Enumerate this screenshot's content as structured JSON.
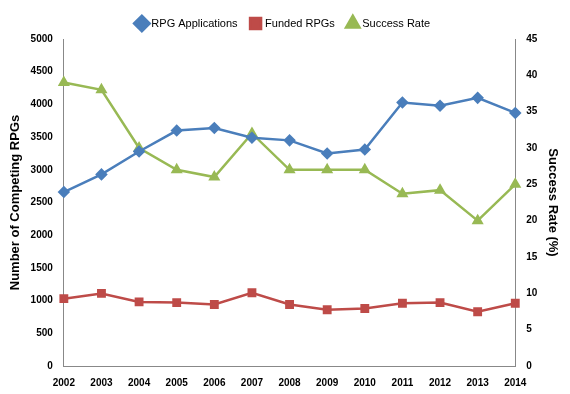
{
  "chart_data": {
    "type": "line",
    "categories": [
      "2002",
      "2003",
      "2004",
      "2005",
      "2006",
      "2007",
      "2008",
      "2009",
      "2010",
      "2011",
      "2012",
      "2013",
      "2014"
    ],
    "ylabel": "Number of Competing RPGs",
    "y2label": "Success Rate (%)",
    "ylim": [
      0,
      5000
    ],
    "yticks": [
      0,
      500,
      1000,
      1500,
      2000,
      2500,
      3000,
      3500,
      4000,
      4500,
      5000
    ],
    "y2lim": [
      0,
      45
    ],
    "y2ticks": [
      0,
      5,
      10,
      15,
      20,
      25,
      30,
      35,
      40,
      45
    ],
    "grid": false,
    "legend": "top",
    "series": [
      {
        "name": "RPG Applications",
        "color": "#4a7ebb",
        "marker": "diamond",
        "values": [
          2660,
          2930,
          3280,
          3600,
          3640,
          3490,
          3450,
          3250,
          3310,
          4030,
          3980,
          4100,
          3870
        ]
      },
      {
        "name": "Funded RPGs",
        "color": "#be4b48",
        "marker": "square",
        "values": [
          1030,
          1110,
          980,
          970,
          940,
          1120,
          940,
          860,
          880,
          960,
          970,
          830,
          960
        ]
      },
      {
        "name": "Success Rate",
        "color": "#98b954",
        "marker": "triangle",
        "axis": "y2",
        "values": [
          39,
          38,
          30,
          27,
          26,
          32,
          27,
          27,
          27,
          23.7,
          24.2,
          20,
          25
        ]
      }
    ]
  }
}
